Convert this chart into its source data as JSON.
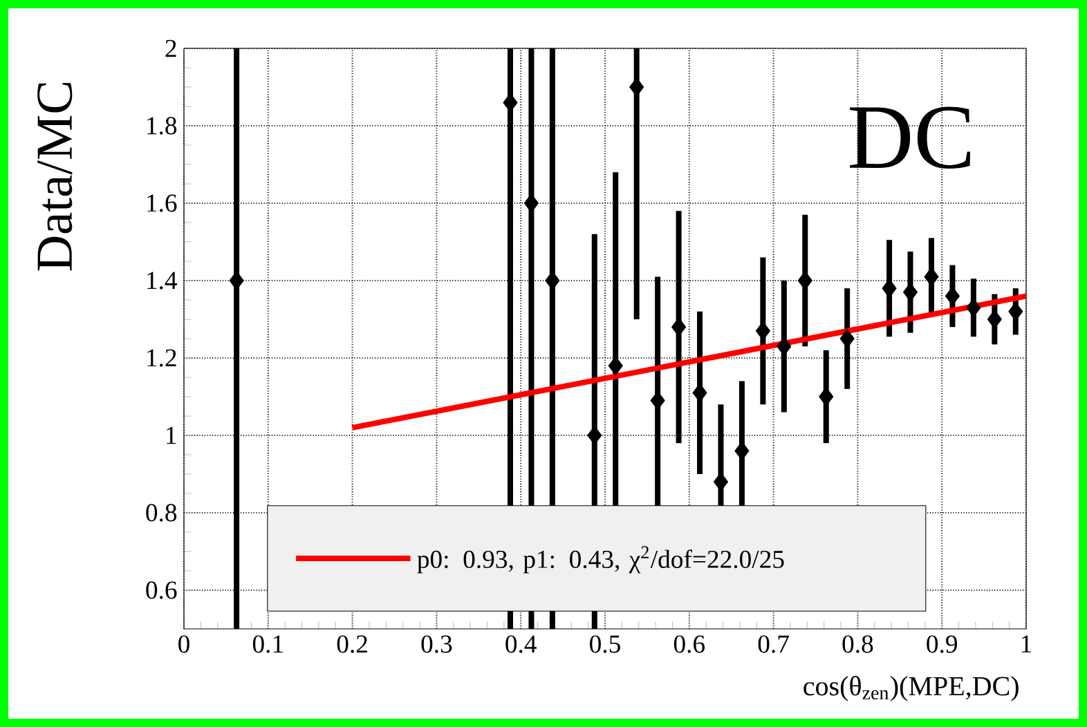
{
  "chart_data": {
    "type": "scatter",
    "xlabel": "cos(θ$_{zen}$)(MPE,DC)",
    "ylabel": "Data/MC",
    "annotations": [
      "DC"
    ],
    "xlim": [
      0,
      1
    ],
    "ylim": [
      0.5,
      2
    ],
    "xticks": [
      0,
      0.1,
      0.2,
      0.3,
      0.4,
      0.5,
      0.6,
      0.7,
      0.8,
      0.9,
      1
    ],
    "yticks": [
      0.6,
      0.8,
      1,
      1.2,
      1.4,
      1.6,
      1.8,
      2
    ],
    "grid": true,
    "legend": "bottom",
    "series": [
      {
        "color": "#000000",
        "marker": "diamond",
        "x": [
          0.0625,
          0.3875,
          0.4125,
          0.4375,
          0.4875,
          0.5125,
          0.5375,
          0.5625,
          0.5875,
          0.6125,
          0.6375,
          0.6625,
          0.6875,
          0.7125,
          0.7375,
          0.7625,
          0.7875,
          0.8375,
          0.8625,
          0.8875,
          0.9125,
          0.9375,
          0.9625,
          0.9875
        ],
        "values": [
          1.4,
          1.86,
          1.6,
          1.4,
          1.0,
          1.18,
          1.9,
          1.09,
          1.28,
          1.11,
          0.88,
          0.96,
          1.27,
          1.23,
          1.4,
          1.1,
          1.25,
          1.38,
          1.37,
          1.41,
          1.36,
          1.33,
          1.3,
          1.32
        ],
        "errors": [
          [
            0.5,
            2
          ],
          [
            0.5,
            2
          ],
          [
            0.5,
            2
          ],
          [
            0.5,
            2
          ],
          [
            0.5,
            1.52
          ],
          0.5,
          [
            1.3,
            2
          ],
          0.32,
          0.3,
          0.21,
          0.2,
          0.18,
          0.19,
          0.17,
          0.17,
          0.12,
          0.13,
          0.125,
          0.105,
          0.1,
          0.08,
          0.075,
          0.065,
          0.06
        ]
      },
      {
        "type": "line",
        "name": "p0: 0.93, p1: 0.43,   χ$^{2}$/dof=22.0/25",
        "color": "#ff0000",
        "x": [
          0.2,
          1
        ],
        "values": [
          1.02,
          1.36
        ]
      }
    ]
  }
}
